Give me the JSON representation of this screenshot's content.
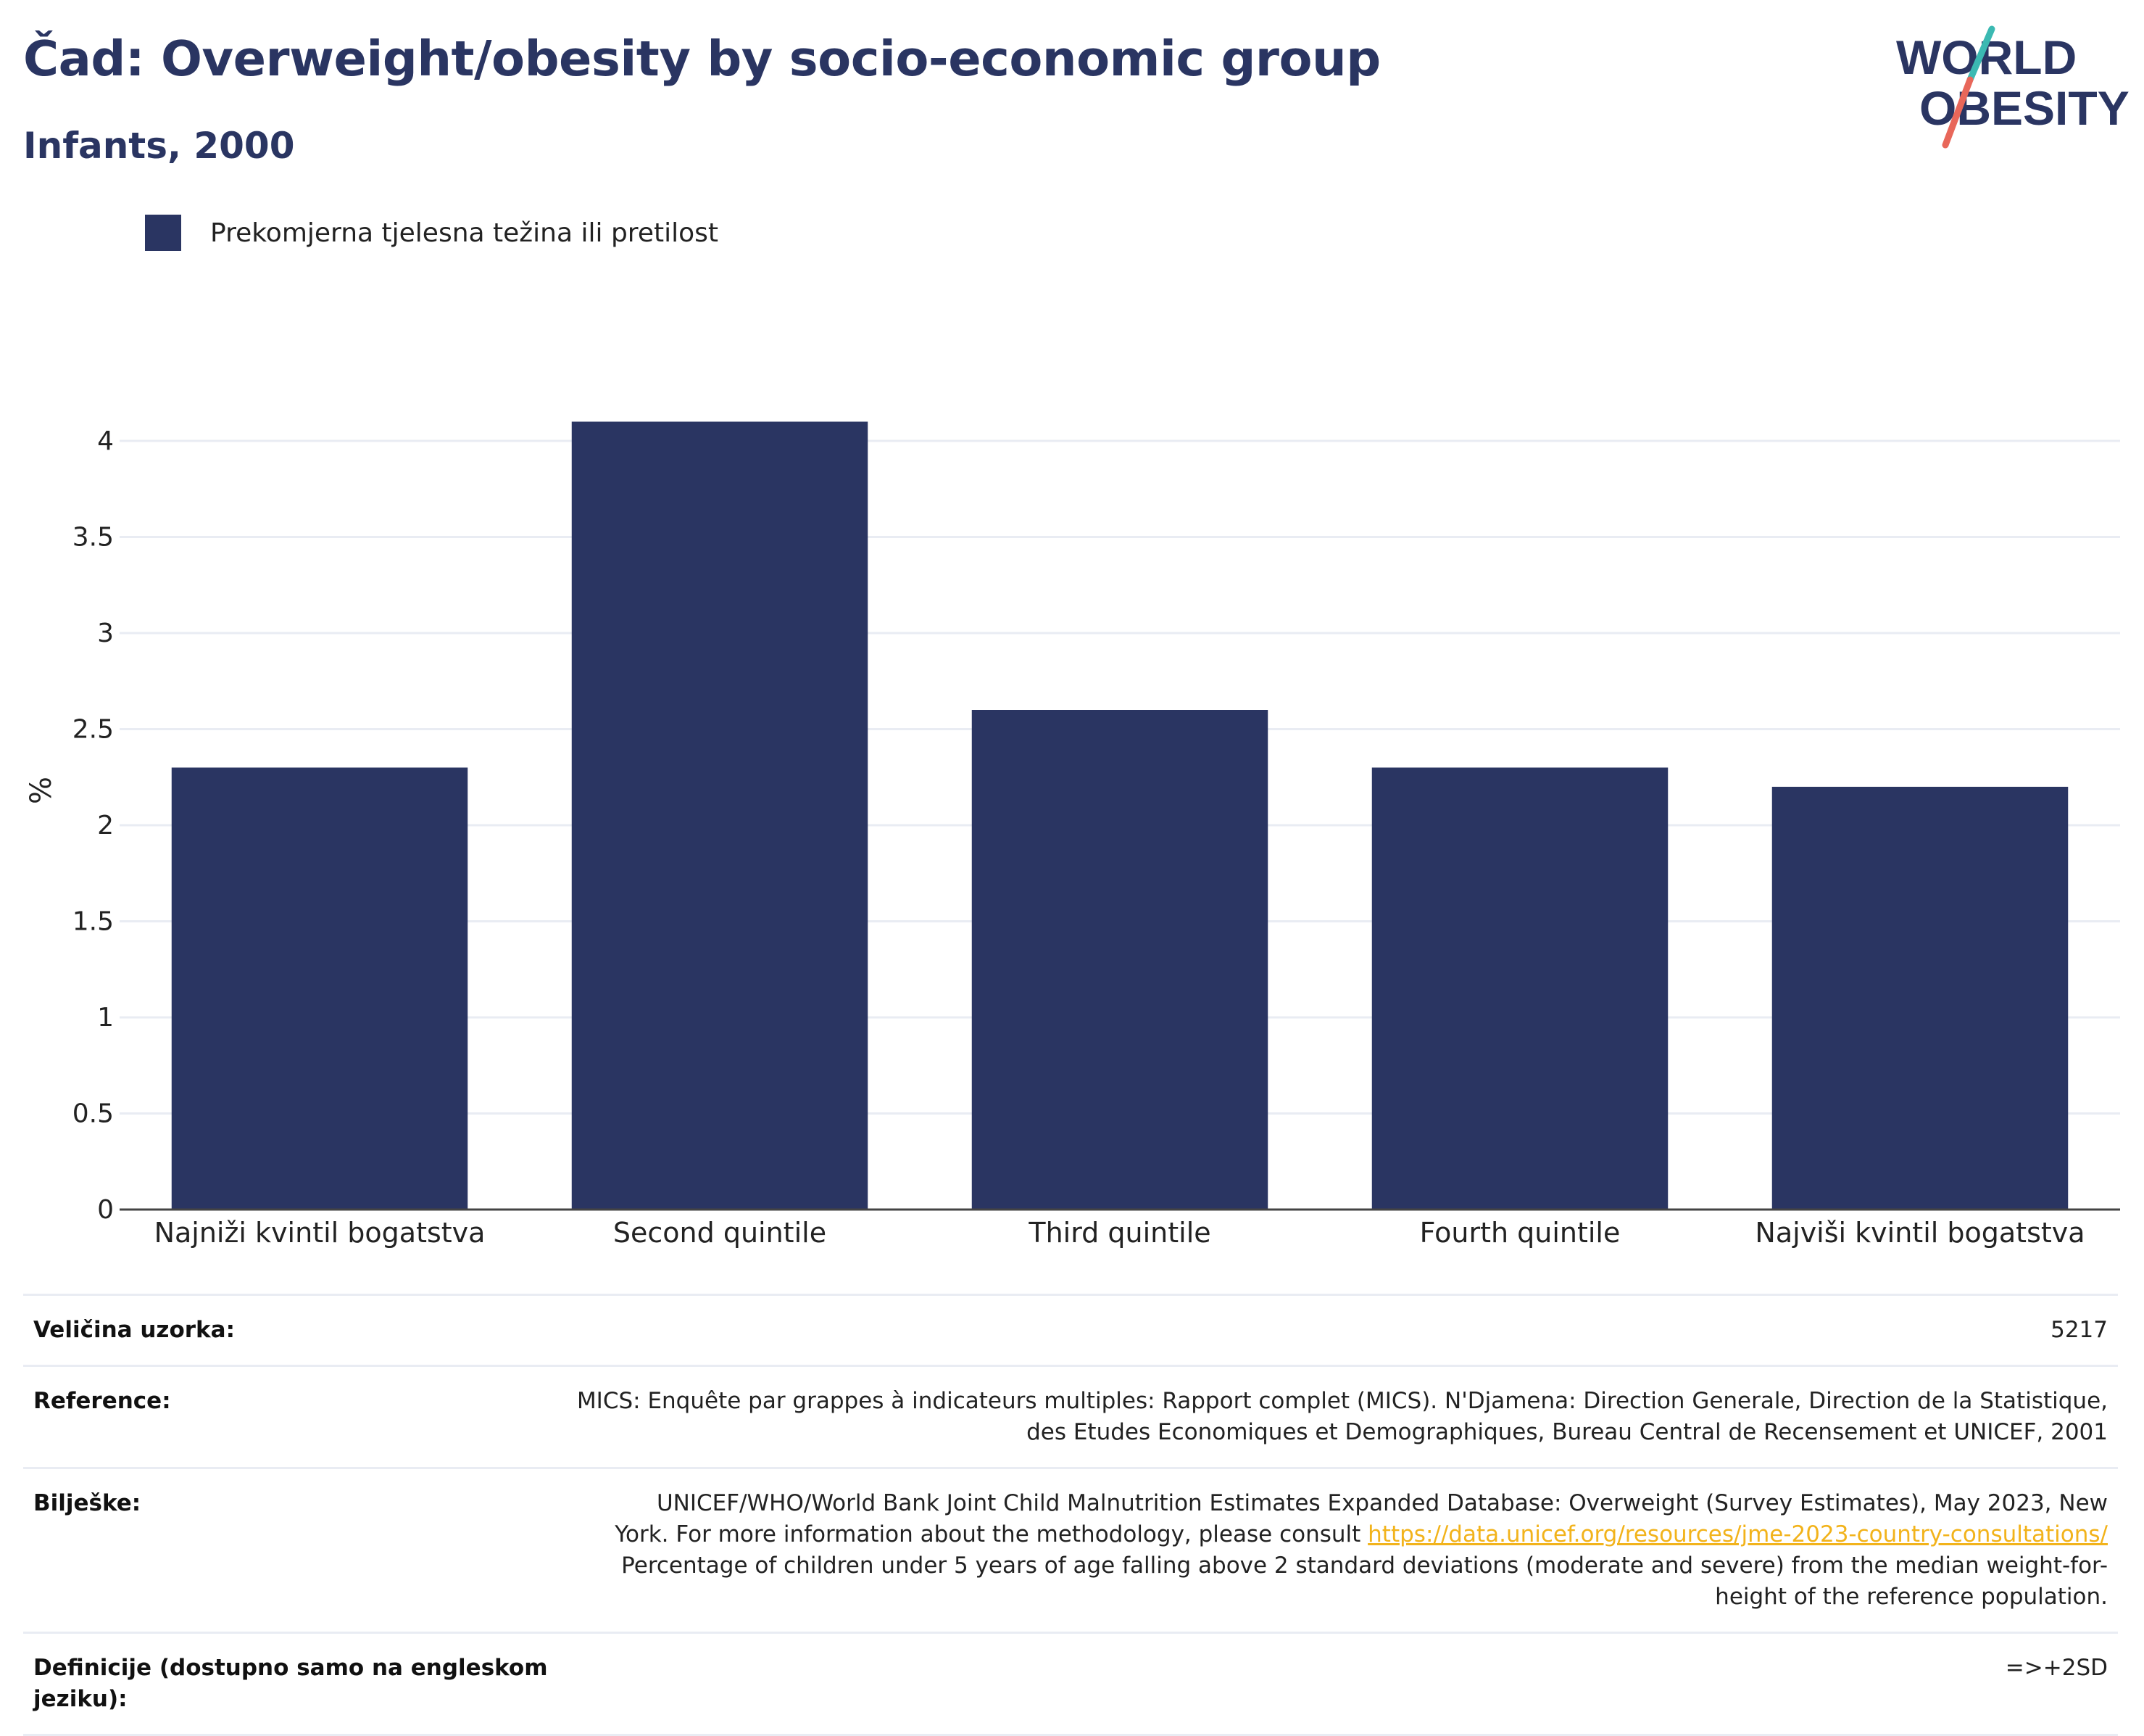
{
  "header": {
    "title": "Čad: Overweight/obesity by socio-economic group",
    "subtitle": "Infants, 2000"
  },
  "logo": {
    "line1": "WORLD",
    "line2": "OBESITY",
    "colors": {
      "text": "#2a3562",
      "slash_top": "#3bb9b2",
      "slash_bottom": "#e8675a"
    }
  },
  "legend": {
    "label": "Prekomjerna tjelesna težina ili pretilost",
    "color": "#2a3562"
  },
  "chart_data": {
    "type": "bar",
    "categories": [
      "Najniži kvintil bogatstva",
      "Second quintile",
      "Third quintile",
      "Fourth quintile",
      "Najviši kvintil bogatstva"
    ],
    "series": [
      {
        "name": "Prekomjerna tjelesna težina ili pretilost",
        "values": [
          2.3,
          4.1,
          2.6,
          2.3,
          2.2
        ]
      }
    ],
    "ylabel": "%",
    "ylim": [
      0,
      4.2
    ],
    "yticks": [
      0,
      0.5,
      1,
      1.5,
      2,
      2.5,
      3,
      3.5,
      4
    ],
    "ytick_labels": [
      "0",
      "0.5",
      "1",
      "1.5",
      "2",
      "2.5",
      "3",
      "3.5",
      "4"
    ],
    "grid": true,
    "bar_color": "#2a3562",
    "legend_position": "top-left"
  },
  "info": {
    "sample_size": {
      "label": "Veličina uzorka:",
      "value": "5217"
    },
    "references": {
      "label": "Reference:",
      "line1": "MICS: Enquête par grappes à indicateurs multiples: Rapport complet (MICS). N'Djamena: Direction Generale, Direction de la Statistique,",
      "line2": "des Etudes Economiques et Demographiques, Bureau Central de Recensement et UNICEF, 2001"
    },
    "notes": {
      "label": "Bilješke:",
      "line1": "UNICEF/WHO/World Bank Joint Child Malnutrition Estimates Expanded Database: Overweight (Survey Estimates), May 2023, New",
      "line2_prefix": "York. For more information about the methodology, please consult ",
      "link": "https://data.unicef.org/resources/jme-2023-country-consultations/",
      "line3": "Percentage of children under 5 years of age falling above 2 standard deviations (moderate and severe) from the median weight-for-",
      "line4": "height of the reference population."
    },
    "definitions": {
      "label_line1": "Definicije (dostupno samo na engleskom",
      "label_line2": "jeziku):",
      "value": "=>+2SD"
    }
  }
}
